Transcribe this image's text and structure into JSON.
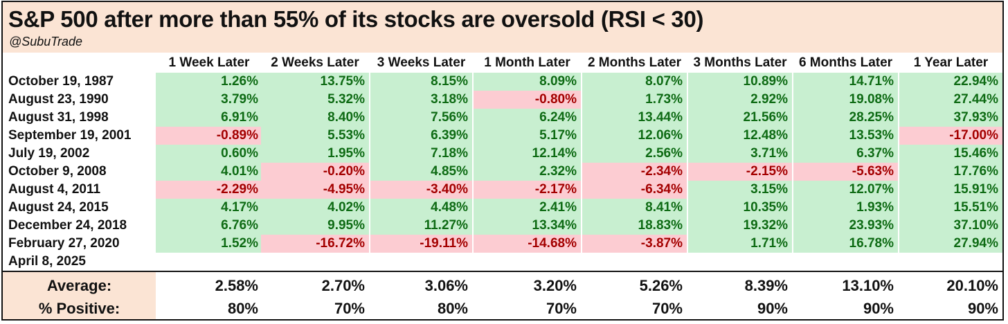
{
  "header": {
    "title": "S&P 500 after more than 55% of its stocks are oversold (RSI < 30)",
    "handle": "@SubuTrade"
  },
  "colors": {
    "header_bg": "#fbe4d4",
    "positive_bg": "#c8efd0",
    "positive_text": "#0e6b14",
    "negative_bg": "#fcccd2",
    "negative_text": "#a40000"
  },
  "chart_data": {
    "type": "table",
    "title": "S&P 500 after more than 55% of its stocks are oversold (RSI < 30)",
    "columns": [
      "1 Week Later",
      "2 Weeks Later",
      "3 Weeks Later",
      "1 Month Later",
      "2 Months Later",
      "3 Months Later",
      "6 Months Later",
      "1 Year Later"
    ],
    "rows": [
      {
        "date": "October 19, 1987",
        "values": [
          "1.26%",
          "13.75%",
          "8.15%",
          "8.09%",
          "8.07%",
          "10.89%",
          "14.71%",
          "22.94%"
        ]
      },
      {
        "date": "August 23, 1990",
        "values": [
          "3.79%",
          "5.32%",
          "3.18%",
          "-0.80%",
          "1.73%",
          "2.92%",
          "19.08%",
          "27.44%"
        ]
      },
      {
        "date": "August 31, 1998",
        "values": [
          "6.91%",
          "8.40%",
          "7.56%",
          "6.24%",
          "13.44%",
          "21.56%",
          "28.25%",
          "37.93%"
        ]
      },
      {
        "date": "September 19, 2001",
        "values": [
          "-0.89%",
          "5.53%",
          "6.39%",
          "5.17%",
          "12.06%",
          "12.48%",
          "13.53%",
          "-17.00%"
        ]
      },
      {
        "date": "July 19, 2002",
        "values": [
          "0.60%",
          "1.95%",
          "7.18%",
          "12.14%",
          "2.56%",
          "3.71%",
          "6.37%",
          "15.46%"
        ]
      },
      {
        "date": "October 9, 2008",
        "values": [
          "4.01%",
          "-0.20%",
          "4.85%",
          "2.32%",
          "-2.34%",
          "-2.15%",
          "-5.63%",
          "17.76%"
        ]
      },
      {
        "date": "August 4, 2011",
        "values": [
          "-2.29%",
          "-4.95%",
          "-3.40%",
          "-2.17%",
          "-6.34%",
          "3.15%",
          "12.07%",
          "15.91%"
        ]
      },
      {
        "date": "August 24, 2015",
        "values": [
          "4.17%",
          "4.02%",
          "4.48%",
          "2.41%",
          "8.41%",
          "10.35%",
          "1.93%",
          "15.51%"
        ]
      },
      {
        "date": "December 24, 2018",
        "values": [
          "6.76%",
          "9.95%",
          "11.27%",
          "13.34%",
          "18.83%",
          "19.32%",
          "23.93%",
          "37.10%"
        ]
      },
      {
        "date": "February 27, 2020",
        "values": [
          "1.52%",
          "-16.72%",
          "-19.11%",
          "-14.68%",
          "-3.87%",
          "1.71%",
          "16.78%",
          "27.94%"
        ]
      },
      {
        "date": "April 8, 2025",
        "values": []
      }
    ],
    "summary": [
      {
        "label": "Average:",
        "values": [
          "2.58%",
          "2.70%",
          "3.06%",
          "3.20%",
          "5.26%",
          "8.39%",
          "13.10%",
          "20.10%"
        ]
      },
      {
        "label": "% Positive:",
        "values": [
          "80%",
          "70%",
          "80%",
          "70%",
          "70%",
          "90%",
          "90%",
          "90%"
        ]
      }
    ]
  }
}
